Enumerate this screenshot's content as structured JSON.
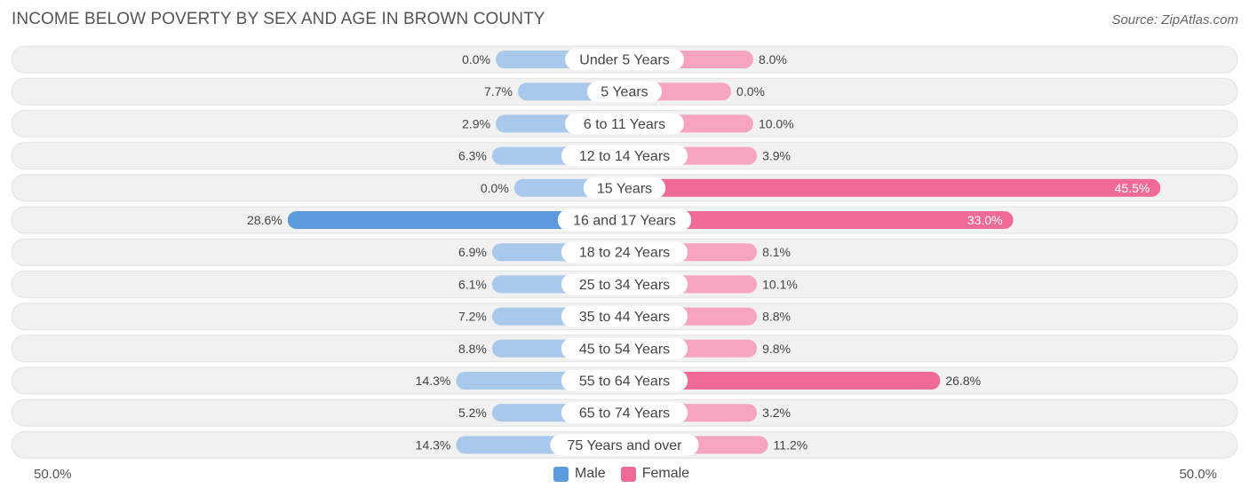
{
  "title": "INCOME BELOW POVERTY BY SEX AND AGE IN BROWN COUNTY",
  "source": "Source: ZipAtlas.com",
  "colors": {
    "male_light": "#a8c8ec",
    "male_dark": "#5b9bdc",
    "female_light": "#f7a4bf",
    "female_dark": "#f06a96",
    "row_bg": "#f1f1f1"
  },
  "axis": {
    "left_label": "50.0%",
    "right_label": "50.0%"
  },
  "legend": {
    "male": "Male",
    "female": "Female"
  },
  "chart_data": {
    "type": "bar",
    "orientation": "horizontal-diverging",
    "title": "INCOME BELOW POVERTY BY SEX AND AGE IN BROWN COUNTY",
    "xlim": [
      -50,
      50
    ],
    "categories": [
      "Under 5 Years",
      "5 Years",
      "6 to 11 Years",
      "12 to 14 Years",
      "15 Years",
      "16 and 17 Years",
      "18 to 24 Years",
      "25 to 34 Years",
      "35 to 44 Years",
      "45 to 54 Years",
      "55 to 64 Years",
      "65 to 74 Years",
      "75 Years and over"
    ],
    "series": [
      {
        "name": "Male",
        "values": [
          0.0,
          7.7,
          2.9,
          6.3,
          0.0,
          28.6,
          6.9,
          6.1,
          7.2,
          8.8,
          14.3,
          5.2,
          14.3
        ],
        "labels": [
          "0.0%",
          "7.7%",
          "2.9%",
          "6.3%",
          "0.0%",
          "28.6%",
          "6.9%",
          "6.1%",
          "7.2%",
          "8.8%",
          "14.3%",
          "5.2%",
          "14.3%"
        ]
      },
      {
        "name": "Female",
        "values": [
          8.0,
          0.0,
          10.0,
          3.9,
          45.5,
          33.0,
          8.1,
          10.1,
          8.8,
          9.8,
          26.8,
          3.2,
          11.2
        ],
        "labels": [
          "8.0%",
          "0.0%",
          "10.0%",
          "3.9%",
          "45.5%",
          "33.0%",
          "8.1%",
          "10.1%",
          "8.8%",
          "9.8%",
          "26.8%",
          "3.2%",
          "11.2%"
        ]
      }
    ]
  }
}
